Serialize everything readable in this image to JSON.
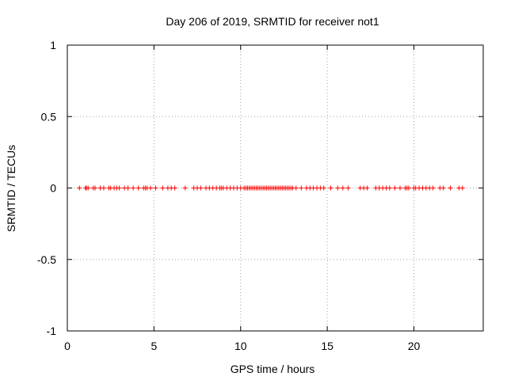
{
  "chart_data": {
    "type": "scatter",
    "title": "Day 206 of 2019, SRMTID for receiver not1",
    "xlabel": "GPS time / hours",
    "ylabel": "SRMTID / TECUs",
    "xlim": [
      0,
      24
    ],
    "ylim": [
      -1,
      1
    ],
    "grid": true,
    "marker": "plus",
    "colors": {
      "points": "#ff0000",
      "grid": "#a0a0a0",
      "axes": "#000000"
    },
    "x_ticks": [
      0,
      5,
      10,
      15,
      20
    ],
    "x_tick_labels": [
      "0",
      "5",
      "10",
      "15",
      "20"
    ],
    "y_ticks": [
      -1,
      -0.5,
      0,
      0.5,
      1
    ],
    "y_tick_labels": [
      "-1",
      "-0.5",
      "0",
      "0.5",
      "1"
    ],
    "x": [
      0.7,
      1.05,
      1.1,
      1.2,
      1.5,
      1.6,
      1.9,
      2.1,
      2.4,
      2.5,
      2.7,
      2.85,
      3.0,
      3.3,
      3.5,
      3.8,
      4.1,
      4.4,
      4.5,
      4.6,
      4.8,
      5.1,
      5.5,
      5.8,
      6.0,
      6.2,
      6.8,
      7.3,
      7.5,
      7.7,
      8.0,
      8.2,
      8.4,
      8.6,
      8.8,
      8.9,
      9.0,
      9.2,
      9.4,
      9.6,
      9.8,
      10.0,
      10.2,
      10.3,
      10.4,
      10.5,
      10.6,
      10.7,
      10.8,
      10.9,
      11.0,
      11.1,
      11.2,
      11.3,
      11.4,
      11.5,
      11.6,
      11.7,
      11.8,
      11.9,
      12.0,
      12.1,
      12.2,
      12.3,
      12.4,
      12.5,
      12.6,
      12.7,
      12.8,
      12.9,
      13.0,
      13.2,
      13.5,
      13.8,
      14.0,
      14.2,
      14.4,
      14.6,
      14.8,
      15.2,
      15.6,
      15.9,
      16.2,
      16.9,
      17.1,
      17.3,
      17.8,
      18.0,
      18.2,
      18.4,
      18.6,
      18.9,
      19.2,
      19.5,
      19.6,
      19.7,
      20.0,
      20.1,
      20.3,
      20.5,
      20.7,
      20.9,
      21.1,
      21.5,
      21.7,
      22.1,
      22.6,
      22.8
    ],
    "y": [
      0,
      0,
      0,
      0,
      0,
      0,
      0,
      0,
      0,
      0,
      0,
      0,
      0,
      0,
      0,
      0,
      0,
      0,
      0,
      0,
      0,
      0,
      0,
      0,
      0,
      0,
      0,
      0,
      0,
      0,
      0,
      0,
      0,
      0,
      0,
      0,
      0,
      0,
      0,
      0,
      0,
      0,
      0,
      0,
      0,
      0,
      0,
      0,
      0,
      0,
      0,
      0,
      0,
      0,
      0,
      0,
      0,
      0,
      0,
      0,
      0,
      0,
      0,
      0,
      0,
      0,
      0,
      0,
      0,
      0,
      0,
      0,
      0,
      0,
      0,
      0,
      0,
      0,
      0,
      0,
      0,
      0,
      0,
      0,
      0,
      0,
      0,
      0,
      0,
      0,
      0,
      0,
      0,
      0,
      0,
      0,
      0,
      0,
      0,
      0,
      0,
      0,
      0,
      0,
      0,
      0,
      0,
      0
    ]
  }
}
